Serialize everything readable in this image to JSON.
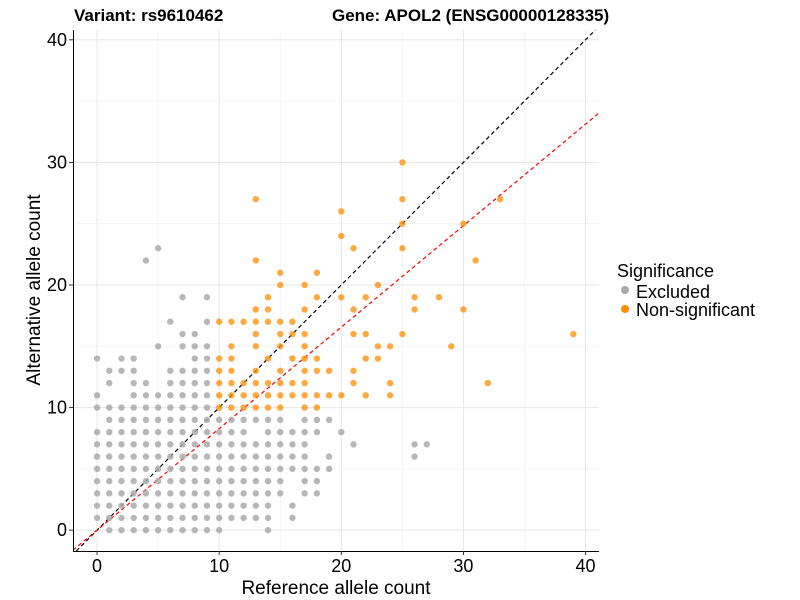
{
  "chart_data": {
    "type": "scatter",
    "title_left": "Variant: rs9610462",
    "title_right": "Gene: APOL2 (ENSG00000128335)",
    "xlabel": "Reference allele count",
    "ylabel": "Alternative allele count",
    "xlim": [
      -1.97,
      41.1
    ],
    "ylim": [
      -1.7,
      40.8
    ],
    "xticks": [
      "0",
      "10",
      "20",
      "30",
      "40"
    ],
    "yticks": [
      "0",
      "10",
      "20",
      "30",
      "40"
    ],
    "grid": true,
    "legend": {
      "title": "Significance",
      "placement": "right",
      "entries": [
        {
          "label": "Excluded",
          "color": "#aaaaaa"
        },
        {
          "label": "Non-significant",
          "color": "#ff8c00"
        }
      ]
    },
    "reference_lines": [
      {
        "name": "identity",
        "slope": 1.0,
        "intercept": 0,
        "color": "#000000",
        "style": "dashed"
      },
      {
        "name": "fit",
        "slope": 0.828,
        "intercept": 0,
        "color": "#ff0000",
        "style": "dashed"
      }
    ],
    "series": [
      {
        "name": "Excluded",
        "color": "#aaaaaa",
        "rows": [
          {
            "y": 0,
            "x": [
              1,
              2,
              3,
              4,
              5,
              6,
              7,
              8,
              9,
              10,
              14
            ]
          },
          {
            "y": 1,
            "x": [
              0,
              1,
              2,
              3,
              4,
              5,
              6,
              7,
              8,
              9,
              10,
              11,
              12,
              13,
              14,
              16
            ]
          },
          {
            "y": 2,
            "x": [
              0,
              1,
              2,
              3,
              4,
              5,
              6,
              7,
              8,
              9,
              10,
              11,
              12,
              13,
              14,
              16
            ]
          },
          {
            "y": 3,
            "x": [
              0,
              1,
              2,
              3,
              4,
              5,
              6,
              7,
              8,
              9,
              10,
              11,
              12,
              13,
              14,
              15,
              17,
              18
            ]
          },
          {
            "y": 4,
            "x": [
              0,
              1,
              2,
              3,
              4,
              5,
              6,
              7,
              8,
              9,
              10,
              11,
              12,
              13,
              14,
              15,
              17,
              18
            ]
          },
          {
            "y": 5,
            "x": [
              0,
              1,
              2,
              3,
              4,
              5,
              6,
              7,
              8,
              9,
              10,
              11,
              12,
              13,
              14,
              15,
              16,
              17,
              18,
              19
            ]
          },
          {
            "y": 6,
            "x": [
              0,
              1,
              2,
              3,
              4,
              5,
              6,
              7,
              8,
              9,
              10,
              11,
              12,
              13,
              14,
              15,
              16,
              17,
              19,
              26
            ]
          },
          {
            "y": 7,
            "x": [
              0,
              1,
              2,
              3,
              4,
              5,
              6,
              7,
              8,
              9,
              10,
              11,
              12,
              13,
              14,
              15,
              16,
              17,
              21,
              26,
              27
            ]
          },
          {
            "y": 8,
            "x": [
              0,
              1,
              2,
              3,
              4,
              5,
              6,
              7,
              8,
              9,
              10,
              11,
              12,
              14,
              15,
              16,
              17,
              18,
              20
            ]
          },
          {
            "y": 9,
            "x": [
              1,
              2,
              3,
              4,
              5,
              6,
              7,
              8,
              9,
              10,
              11,
              12,
              13,
              14,
              15,
              17,
              18,
              19
            ]
          },
          {
            "y": 10,
            "x": [
              0,
              1,
              2,
              3,
              4,
              5,
              6,
              7,
              8,
              9
            ]
          },
          {
            "y": 11,
            "x": [
              0,
              3,
              4,
              5,
              6,
              7,
              8,
              9
            ]
          },
          {
            "y": 12,
            "x": [
              1,
              3,
              4,
              6,
              7,
              8,
              9
            ]
          },
          {
            "y": 13,
            "x": [
              1,
              2,
              3,
              6,
              7,
              8,
              9
            ]
          },
          {
            "y": 14,
            "x": [
              0,
              2,
              3,
              8,
              9
            ]
          },
          {
            "y": 15,
            "x": [
              5,
              7,
              8,
              9
            ]
          },
          {
            "y": 16,
            "x": [
              7,
              8
            ]
          },
          {
            "y": 17,
            "x": [
              6,
              9
            ]
          },
          {
            "y": 19,
            "x": [
              7,
              9
            ]
          },
          {
            "y": 22,
            "x": [
              4
            ]
          },
          {
            "y": 23,
            "x": [
              5
            ]
          }
        ]
      },
      {
        "name": "Non-significant",
        "color": "#ff8c00",
        "rows": [
          {
            "y": 10,
            "x": [
              10,
              11,
              12,
              13,
              14,
              15,
              17,
              18
            ]
          },
          {
            "y": 11,
            "x": [
              10,
              11,
              12,
              13,
              14,
              15,
              16,
              17,
              18,
              19,
              20,
              22,
              24
            ]
          },
          {
            "y": 12,
            "x": [
              10,
              11,
              12,
              13,
              14,
              15,
              16,
              17,
              21,
              24,
              32
            ]
          },
          {
            "y": 13,
            "x": [
              10,
              11,
              13,
              15,
              17,
              18,
              19,
              21
            ]
          },
          {
            "y": 14,
            "x": [
              10,
              11,
              14,
              16,
              17,
              18,
              22,
              23
            ]
          },
          {
            "y": 15,
            "x": [
              11,
              13,
              15,
              17,
              23,
              24,
              29
            ]
          },
          {
            "y": 16,
            "x": [
              13,
              15,
              16,
              17,
              21,
              22,
              25,
              39
            ]
          },
          {
            "y": 17,
            "x": [
              10,
              11,
              12,
              13,
              14,
              15,
              16
            ]
          },
          {
            "y": 18,
            "x": [
              13,
              14,
              17,
              21,
              26,
              30
            ]
          },
          {
            "y": 19,
            "x": [
              14,
              18,
              20,
              22,
              26,
              28
            ]
          },
          {
            "y": 20,
            "x": [
              15,
              17,
              23
            ]
          },
          {
            "y": 21,
            "x": [
              15,
              18
            ]
          },
          {
            "y": 22,
            "x": [
              13,
              31
            ]
          },
          {
            "y": 23,
            "x": [
              21,
              25
            ]
          },
          {
            "y": 24,
            "x": [
              20
            ]
          },
          {
            "y": 25,
            "x": [
              25,
              30
            ]
          },
          {
            "y": 26,
            "x": [
              20
            ]
          },
          {
            "y": 27,
            "x": [
              13,
              25,
              33
            ]
          },
          {
            "y": 30,
            "x": [
              25
            ]
          }
        ]
      }
    ]
  }
}
